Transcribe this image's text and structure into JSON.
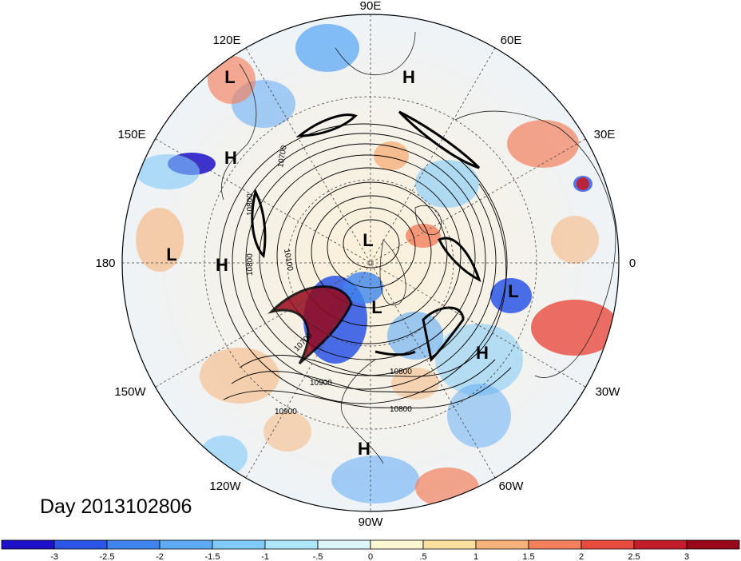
{
  "day_label": "Day 2013102806",
  "longitude_labels": [
    {
      "id": "lon-90e",
      "text": "90E"
    },
    {
      "id": "lon-60e",
      "text": "60E"
    },
    {
      "id": "lon-30e",
      "text": "30E"
    },
    {
      "id": "lon-0",
      "text": "0"
    },
    {
      "id": "lon-30w",
      "text": "30W"
    },
    {
      "id": "lon-60w",
      "text": "60W"
    },
    {
      "id": "lon-90w",
      "text": "90W"
    },
    {
      "id": "lon-120w",
      "text": "120W"
    },
    {
      "id": "lon-150w",
      "text": "150W"
    },
    {
      "id": "lon-180",
      "text": "180"
    },
    {
      "id": "lon-150e",
      "text": "150E"
    },
    {
      "id": "lon-120e",
      "text": "120E"
    }
  ],
  "pressure_centers": [
    "L",
    "H",
    "H",
    "L",
    "H",
    "L",
    "L",
    "L",
    "H",
    "H"
  ],
  "contour_labels": [
    "10700",
    "10800",
    "10100",
    "10900",
    "10700",
    "10800",
    "10900",
    "10800",
    "10800"
  ],
  "colorbar": {
    "ticks": [
      "-3",
      "-2.5",
      "-2",
      "-1.5",
      "-1",
      "-.5",
      "0",
      ".5",
      "1",
      "1.5",
      "2",
      "2.5",
      "3"
    ],
    "colors": [
      "#1e10c8",
      "#2a55e6",
      "#3f84ee",
      "#5eaaf5",
      "#7fcaf8",
      "#aee6fa",
      "#dcf5fb",
      "#fcf6d2",
      "#fbe0a0",
      "#f6b27a",
      "#f2805c",
      "#e84a3e",
      "#c41c2a",
      "#98081a"
    ]
  }
}
